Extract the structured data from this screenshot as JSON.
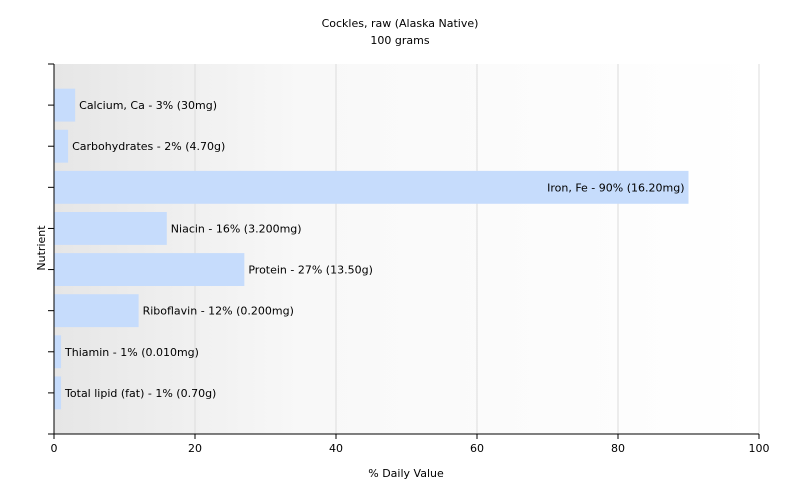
{
  "chart_data": {
    "type": "bar",
    "orientation": "horizontal",
    "title": "Cockles, raw (Alaska Native)",
    "subtitle": "100 grams",
    "xlabel": "% Daily Value",
    "ylabel": "Nutrient",
    "xlim": [
      0,
      100
    ],
    "xticks": [
      "0",
      "20",
      "40",
      "60",
      "80",
      "100"
    ],
    "grid": true,
    "bar_color": "#c6dcfc",
    "categories": [
      "Calcium, Ca",
      "Carbohydrates",
      "Iron, Fe",
      "Niacin",
      "Protein",
      "Riboflavin",
      "Thiamin",
      "Total lipid (fat)"
    ],
    "values": [
      3,
      2,
      90,
      16,
      27,
      12,
      1,
      1
    ],
    "labels": [
      "Calcium, Ca - 3% (30mg)",
      "Carbohydrates - 2% (4.70g)",
      "Iron, Fe - 90% (16.20mg)",
      "Niacin - 16% (3.200mg)",
      "Protein - 27% (13.50g)",
      "Riboflavin - 12% (0.200mg)",
      "Thiamin - 1% (0.010mg)",
      "Total lipid (fat) - 1% (0.70g)"
    ]
  }
}
